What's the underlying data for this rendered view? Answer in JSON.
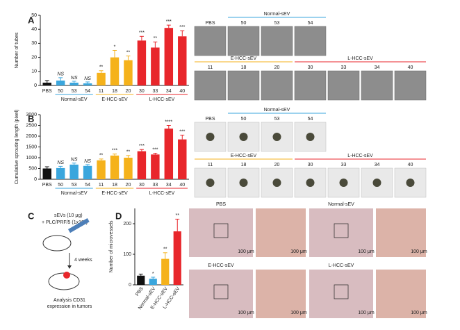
{
  "chart_data": [
    {
      "type": "bar",
      "panel": "A",
      "y_label": "Number of tubes",
      "categories": [
        "PBS",
        "50",
        "53",
        "54",
        "11",
        "18",
        "20",
        "30",
        "33",
        "34",
        "40"
      ],
      "groups": [
        "Normal-sEV",
        "E-HCC-sEV",
        "L-HCC-sEV"
      ],
      "values": [
        2,
        3.5,
        2,
        1.5,
        9,
        20,
        18,
        32,
        27,
        41,
        35
      ],
      "errors": [
        1.5,
        2,
        1,
        1,
        1.5,
        5,
        3,
        3,
        4,
        2,
        4
      ],
      "significance": [
        null,
        "NS",
        "NS",
        "NS",
        "**",
        "*",
        "**",
        "***",
        "**",
        "***",
        "***"
      ],
      "colors": [
        "#111111",
        "#3aa6dd",
        "#3aa6dd",
        "#3aa6dd",
        "#f5b21b",
        "#f5b21b",
        "#f5b21b",
        "#e8262b",
        "#e8262b",
        "#e8262b",
        "#e8262b"
      ],
      "ylim": [
        0,
        50
      ],
      "yticks": [
        0,
        10,
        20,
        30,
        40,
        50
      ]
    },
    {
      "type": "bar",
      "panel": "B",
      "y_label": "Cumulative sprouting length (pixel)",
      "categories": [
        "PBS",
        "50",
        "53",
        "54",
        "11",
        "18",
        "20",
        "30",
        "33",
        "34",
        "40"
      ],
      "groups": [
        "Normal-sEV",
        "E-HCC-sEV",
        "L-HCC-sEV"
      ],
      "values": [
        500,
        520,
        680,
        620,
        880,
        1100,
        1000,
        1300,
        1150,
        2350,
        1850
      ],
      "errors": [
        80,
        80,
        70,
        60,
        60,
        70,
        100,
        80,
        60,
        150,
        200
      ],
      "significance": [
        null,
        "NS",
        "NS",
        "NS",
        "**",
        "***",
        "**",
        "***",
        "***",
        "****",
        "***"
      ],
      "colors": [
        "#111111",
        "#3aa6dd",
        "#3aa6dd",
        "#3aa6dd",
        "#f5b21b",
        "#f5b21b",
        "#f5b21b",
        "#e8262b",
        "#e8262b",
        "#e8262b",
        "#e8262b"
      ],
      "ylim": [
        0,
        3000
      ],
      "yticks": [
        0,
        500,
        1000,
        1500,
        2000,
        2500,
        3000
      ]
    },
    {
      "type": "bar",
      "panel": "D",
      "y_label": "Number of microvessels",
      "categories": [
        "PBS",
        "Normal-sEV",
        "E-HCC-sEV",
        "L-HCC-sEV"
      ],
      "values": [
        30,
        20,
        85,
        175
      ],
      "errors": [
        5,
        5,
        20,
        40
      ],
      "significance": [
        null,
        "*",
        "**",
        "**"
      ],
      "colors": [
        "#111111",
        "#3aa6dd",
        "#f5b21b",
        "#e8262b"
      ],
      "ylim": [
        0,
        250
      ],
      "yticks": [
        0,
        100,
        200
      ]
    }
  ],
  "micrographs_A": {
    "headers": [
      "Normal-sEV",
      "E-HCC-sEV",
      "L-HCC-sEV"
    ],
    "labels": [
      "PBS",
      "50",
      "53",
      "54",
      "11",
      "18",
      "20",
      "30",
      "33",
      "34",
      "40"
    ]
  },
  "micrographs_B": {
    "headers": [
      "Normal-sEV",
      "E-HCC-sEV",
      "L-HCC-sEV"
    ],
    "labels": [
      "PBS",
      "50",
      "53",
      "54",
      "11",
      "18",
      "20",
      "30",
      "33",
      "34",
      "40"
    ]
  },
  "micrographs_D": {
    "labels": [
      "PBS",
      "Normal-sEV",
      "E-HCC-sEV",
      "L-HCC-sEV"
    ],
    "scale_bar": "100 μm"
  },
  "schematic": {
    "panel": "C",
    "line1": "sEVs (10 μg)",
    "line2": "+ PLC/PRF/5 (1x10⁶)",
    "duration": "4 weeks",
    "readout1": "Analysis CD31",
    "readout2": "expression in tumors"
  }
}
